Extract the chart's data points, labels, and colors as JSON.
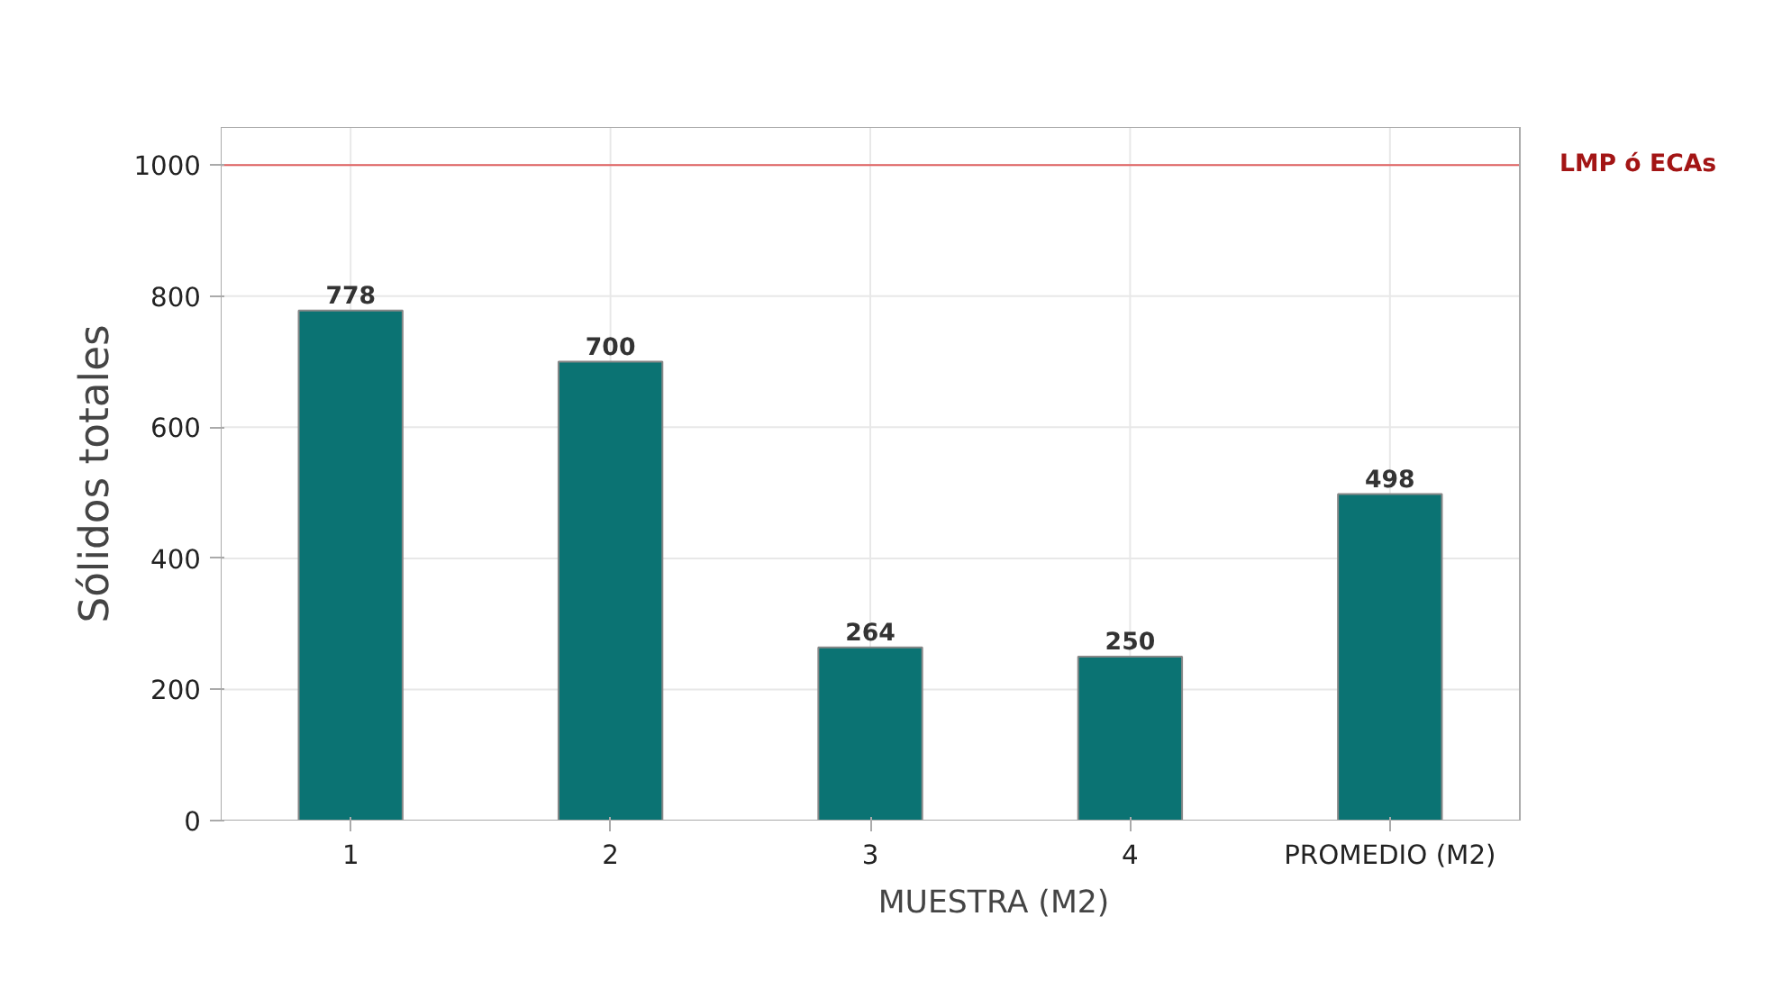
{
  "chart_data": {
    "type": "bar",
    "xlabel": "MUESTRA (M2)",
    "ylabel": "Sólidos totales",
    "categories": [
      "1",
      "2",
      "3",
      "4",
      "PROMEDIO (M2)"
    ],
    "values": [
      778,
      700,
      264,
      250,
      498
    ],
    "color": "#0b7373",
    "ylim": [
      0,
      1058
    ],
    "yticks": [
      0,
      200,
      400,
      600,
      800,
      1000
    ],
    "grid": true,
    "data_labels": true,
    "ref_lines": [
      {
        "axis": "y",
        "value": 1000,
        "label": "LMP ó ECAs",
        "color": "#e06060"
      }
    ]
  }
}
